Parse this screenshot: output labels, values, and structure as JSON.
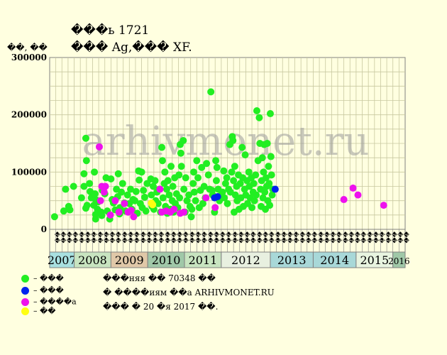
{
  "header": {
    "title_line1": "���ь 1721",
    "title_line2": "��� Ag,��� XF."
  },
  "chart_data": {
    "type": "scatter",
    "y_unit_label": "��, ��",
    "ylim": [
      0,
      300000
    ],
    "yticks": [
      0,
      100000,
      200000,
      300000
    ],
    "ytick_labels": [
      "0",
      "100000",
      "200000",
      "300000"
    ],
    "months": [
      "��",
      "��",
      "��",
      "��",
      "��",
      "��",
      "��",
      "��",
      "��",
      "��",
      "��",
      "��",
      "��",
      "��",
      "��",
      "��",
      "��",
      "��",
      "��",
      "��",
      "��",
      "��",
      "��",
      "��",
      "��",
      "��",
      "��",
      "��",
      "��",
      "��",
      "��",
      "��",
      "��",
      "��",
      "��",
      "��",
      "��",
      "��",
      "��",
      "��",
      "��",
      "��",
      "��",
      "��",
      "��",
      "��",
      "��",
      "��",
      "��",
      "��",
      "��",
      "��",
      "��",
      "��",
      "��",
      "��",
      "��",
      "��"
    ],
    "years": [
      {
        "label": "2007",
        "start": 0,
        "span": 4,
        "color": "#a8e0e0"
      },
      {
        "label": "2008",
        "start": 4,
        "span": 6,
        "color": "#c8e4c0"
      },
      {
        "label": "2009",
        "start": 10,
        "span": 6,
        "color": "#e0c8a8"
      },
      {
        "label": "2010",
        "start": 16,
        "span": 6,
        "color": "#a0c8a8"
      },
      {
        "label": "2011",
        "start": 22,
        "span": 6,
        "color": "#c8e4c0"
      },
      {
        "label": "2012",
        "start": 28,
        "span": 8,
        "color": "#e8f0e0"
      },
      {
        "label": "2013",
        "start": 36,
        "span": 7,
        "color": "#a8d8d8"
      },
      {
        "label": "2014",
        "start": 43,
        "span": 7,
        "color": "#a8d8d8"
      },
      {
        "label": "2015",
        "start": 50,
        "span": 6,
        "color": "#e8f4e0"
      },
      {
        "label": "2016",
        "start": 56,
        "span": 2,
        "color": "#a0c8a8"
      }
    ],
    "series": [
      {
        "key": "green",
        "color": "#22ee22",
        "points": [
          [
            0.3,
            22000
          ],
          [
            1.8,
            32000
          ],
          [
            2.1,
            70000
          ],
          [
            2.6,
            40000
          ],
          [
            2.8,
            34000
          ],
          [
            3.4,
            75000
          ],
          [
            4.7,
            55000
          ],
          [
            5.1,
            97000
          ],
          [
            5.1,
            75000
          ],
          [
            5.4,
            159000
          ],
          [
            5.5,
            120000
          ],
          [
            5.6,
            42000
          ],
          [
            5.4,
            37000
          ],
          [
            6.0,
            80000
          ],
          [
            6.1,
            66000
          ],
          [
            6.3,
            55000
          ],
          [
            6.7,
            42000
          ],
          [
            6.8,
            100000
          ],
          [
            6.9,
            62000
          ],
          [
            7.0,
            52000
          ],
          [
            7.0,
            26000
          ],
          [
            7.0,
            18000
          ],
          [
            7.3,
            35000
          ],
          [
            7.4,
            48000
          ],
          [
            7.9,
            30000
          ],
          [
            8.0,
            24000
          ],
          [
            8.1,
            68000
          ],
          [
            8.5,
            62000
          ],
          [
            8.7,
            90000
          ],
          [
            8.9,
            32000
          ],
          [
            9.3,
            18000
          ],
          [
            9.5,
            88000
          ],
          [
            9.7,
            52000
          ],
          [
            9.9,
            46000
          ],
          [
            10.2,
            34000
          ],
          [
            10.4,
            70000
          ],
          [
            10.6,
            57000
          ],
          [
            10.7,
            97000
          ],
          [
            10.9,
            27000
          ],
          [
            11.0,
            38000
          ],
          [
            11.2,
            65000
          ],
          [
            11.4,
            80000
          ],
          [
            11.7,
            46000
          ],
          [
            11.9,
            32000
          ],
          [
            12.2,
            60000
          ],
          [
            12.5,
            45000
          ],
          [
            12.7,
            70000
          ],
          [
            12.9,
            35000
          ],
          [
            13.1,
            52000
          ],
          [
            13.4,
            50000
          ],
          [
            13.6,
            66000
          ],
          [
            13.8,
            28000
          ],
          [
            14.0,
            102000
          ],
          [
            14.1,
            86000
          ],
          [
            14.3,
            45000
          ],
          [
            14.5,
            100000
          ],
          [
            14.6,
            38000
          ],
          [
            14.8,
            68000
          ],
          [
            15.0,
            56000
          ],
          [
            15.2,
            32000
          ],
          [
            15.4,
            80000
          ],
          [
            16.0,
            88000
          ],
          [
            16.1,
            60000
          ],
          [
            16.2,
            40000
          ],
          [
            16.4,
            75000
          ],
          [
            16.5,
            35000
          ],
          [
            16.7,
            85000
          ],
          [
            16.8,
            50000
          ],
          [
            17.0,
            65000
          ],
          [
            17.2,
            45000
          ],
          [
            17.4,
            70000
          ],
          [
            17.6,
            30000
          ],
          [
            17.8,
            143000
          ],
          [
            17.9,
            120000
          ],
          [
            18.0,
            55000
          ],
          [
            18.2,
            80000
          ],
          [
            18.3,
            100000
          ],
          [
            18.4,
            40000
          ],
          [
            18.6,
            70000
          ],
          [
            18.7,
            28000
          ],
          [
            18.8,
            85000
          ],
          [
            19.0,
            60000
          ],
          [
            19.2,
            35000
          ],
          [
            19.3,
            110000
          ],
          [
            19.5,
            50000
          ],
          [
            19.6,
            75000
          ],
          [
            19.7,
            30000
          ],
          [
            19.9,
            90000
          ],
          [
            20.0,
            45000
          ],
          [
            20.2,
            62000
          ],
          [
            20.4,
            38000
          ],
          [
            20.6,
            95000
          ],
          [
            20.7,
            55000
          ],
          [
            20.8,
            148000
          ],
          [
            20.9,
            133000
          ],
          [
            21.0,
            110000
          ],
          [
            21.3,
            155000
          ],
          [
            21.4,
            70000
          ],
          [
            21.6,
            30000
          ],
          [
            21.7,
            90000
          ],
          [
            21.9,
            50000
          ],
          [
            22.2,
            60000
          ],
          [
            22.4,
            40000
          ],
          [
            22.6,
            22000
          ],
          [
            22.7,
            35000
          ],
          [
            22.9,
            80000
          ],
          [
            23.0,
            100000
          ],
          [
            23.1,
            65000
          ],
          [
            23.3,
            50000
          ],
          [
            23.5,
            120000
          ],
          [
            23.7,
            90000
          ],
          [
            23.9,
            38000
          ],
          [
            24.1,
            68000
          ],
          [
            24.3,
            108000
          ],
          [
            24.5,
            45000
          ],
          [
            24.7,
            75000
          ],
          [
            24.9,
            55000
          ],
          [
            25.1,
            115000
          ],
          [
            25.4,
            95000
          ],
          [
            25.6,
            70000
          ],
          [
            25.8,
            240000
          ],
          [
            26.0,
            68000
          ],
          [
            26.1,
            60000
          ],
          [
            26.4,
            30000
          ],
          [
            26.6,
            120000
          ],
          [
            26.7,
            85000
          ],
          [
            26.8,
            108000
          ],
          [
            27.0,
            70000
          ],
          [
            27.2,
            50000
          ],
          [
            27.5,
            60000
          ],
          [
            27.7,
            65000
          ],
          [
            27.9,
            102000
          ],
          [
            28.0,
            55000
          ],
          [
            28.2,
            80000
          ],
          [
            28.4,
            90000
          ],
          [
            28.5,
            45000
          ],
          [
            28.7,
            70000
          ],
          [
            28.9,
            148000
          ],
          [
            29.0,
            65000
          ],
          [
            29.2,
            100000
          ],
          [
            29.3,
            162000
          ],
          [
            29.4,
            155000
          ],
          [
            29.5,
            85000
          ],
          [
            29.6,
            30000
          ],
          [
            29.7,
            110000
          ],
          [
            29.8,
            60000
          ],
          [
            30.0,
            75000
          ],
          [
            30.1,
            50000
          ],
          [
            30.3,
            95000
          ],
          [
            30.4,
            35000
          ],
          [
            30.6,
            80000
          ],
          [
            30.7,
            55000
          ],
          [
            30.9,
            143000
          ],
          [
            31.0,
            90000
          ],
          [
            31.1,
            40000
          ],
          [
            31.3,
            70000
          ],
          [
            31.4,
            130000
          ],
          [
            31.5,
            60000
          ],
          [
            31.7,
            85000
          ],
          [
            31.8,
            45000
          ],
          [
            32.0,
            100000
          ],
          [
            32.1,
            75000
          ],
          [
            32.2,
            55000
          ],
          [
            32.4,
            90000
          ],
          [
            32.5,
            38000
          ],
          [
            32.7,
            65000
          ],
          [
            32.8,
            80000
          ],
          [
            32.9,
            50000
          ],
          [
            33.1,
            95000
          ],
          [
            33.2,
            60000
          ],
          [
            33.3,
            207000
          ],
          [
            33.5,
            120000
          ],
          [
            33.7,
            195000
          ],
          [
            33.8,
            150000
          ],
          [
            33.9,
            70000
          ],
          [
            34.0,
            40000
          ],
          [
            34.1,
            85000
          ],
          [
            34.2,
            125000
          ],
          [
            34.3,
            55000
          ],
          [
            34.4,
            100000
          ],
          [
            34.5,
            148000
          ],
          [
            34.6,
            65000
          ],
          [
            34.7,
            35000
          ],
          [
            34.8,
            90000
          ],
          [
            34.9,
            75000
          ],
          [
            35.0,
            150000
          ],
          [
            35.1,
            50000
          ],
          [
            35.2,
            110000
          ],
          [
            35.3,
            80000
          ],
          [
            35.4,
            42000
          ],
          [
            35.5,
            202000
          ],
          [
            35.6,
            127000
          ],
          [
            35.7,
            95000
          ],
          [
            35.8,
            60000
          ],
          [
            35.9,
            70000
          ]
        ]
      },
      {
        "key": "blue",
        "color": "#0022ee",
        "points": [
          [
            26.4,
            55000
          ],
          [
            26.9,
            57000
          ],
          [
            36.3,
            70000
          ]
        ]
      },
      {
        "key": "magenta",
        "color": "#ee11ee",
        "points": [
          [
            7.6,
            144000
          ],
          [
            7.8,
            50000
          ],
          [
            8.0,
            75000
          ],
          [
            8.4,
            65000
          ],
          [
            8.6,
            75000
          ],
          [
            9.4,
            25000
          ],
          [
            10.2,
            50000
          ],
          [
            10.8,
            30000
          ],
          [
            11.7,
            45000
          ],
          [
            12.3,
            30000
          ],
          [
            12.8,
            33000
          ],
          [
            13.2,
            22000
          ],
          [
            17.5,
            70000
          ],
          [
            17.8,
            30000
          ],
          [
            18.5,
            32000
          ],
          [
            19.2,
            30000
          ],
          [
            19.8,
            35000
          ],
          [
            20.8,
            28000
          ],
          [
            21.4,
            30000
          ],
          [
            26.5,
            38000
          ],
          [
            25.0,
            55000
          ],
          [
            47.5,
            52000
          ],
          [
            49.0,
            72000
          ],
          [
            49.8,
            60000
          ],
          [
            54.0,
            42000
          ]
        ]
      },
      {
        "key": "yellow",
        "color": "#ffff11",
        "points": [
          [
            16.1,
            46000
          ],
          [
            16.3,
            43000
          ]
        ]
      }
    ]
  },
  "legend": [
    {
      "label": "– ���",
      "color": "#22ee22"
    },
    {
      "label": "– ���",
      "color": "#0022ee"
    },
    {
      "label": "– ����а",
      "color": "#ee11ee"
    },
    {
      "label": "– ��",
      "color": "#ffff11"
    }
  ],
  "notes": [
    "���няя �� 70348 ��",
    "� ����иям ��а ARHIVMONET.RU",
    "��� � 20 �я 2017 ��."
  ],
  "watermark": "arhivmonet.ru"
}
